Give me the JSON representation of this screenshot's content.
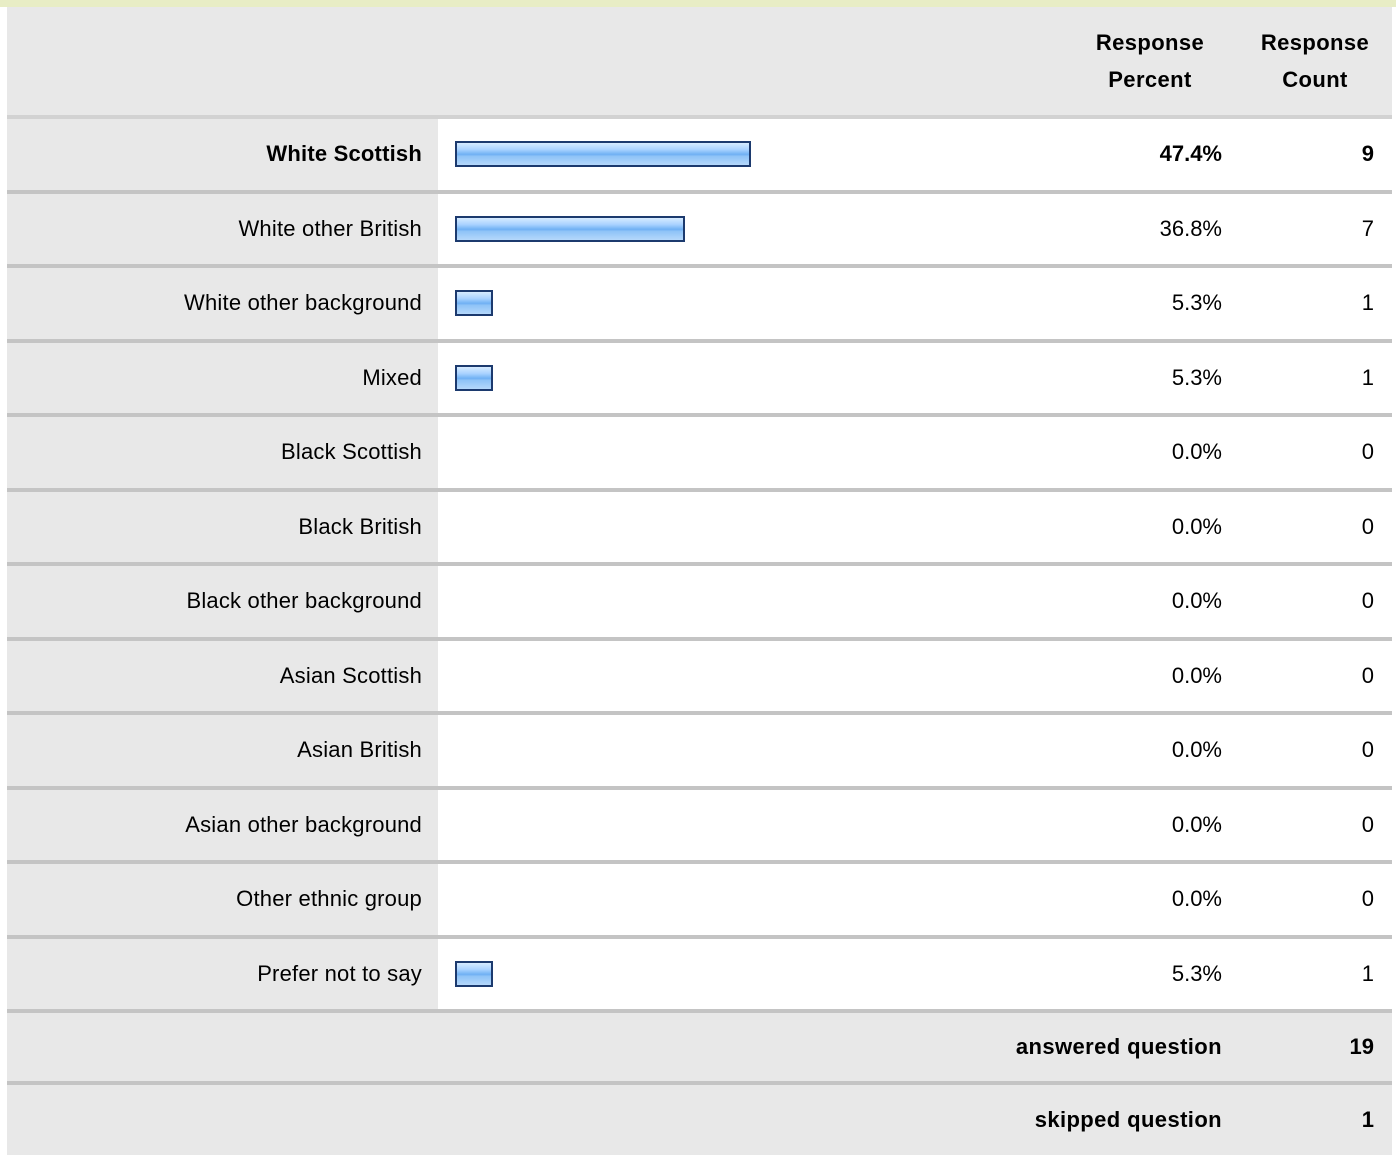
{
  "header": {
    "response_percent": "Response Percent",
    "response_count": "Response Count"
  },
  "accent": {
    "bar_fill": "#6fb0f3",
    "bar_border": "#1c3a6e",
    "label_bg": "#e8e8e8"
  },
  "rows": [
    {
      "label": "White Scottish",
      "percent": "47.4%",
      "count": "9",
      "bar_fraction": 0.474,
      "emphasis": true
    },
    {
      "label": "White other British",
      "percent": "36.8%",
      "count": "7",
      "bar_fraction": 0.368,
      "emphasis": false
    },
    {
      "label": "White other background",
      "percent": "5.3%",
      "count": "1",
      "bar_fraction": 0.053,
      "emphasis": false
    },
    {
      "label": "Mixed",
      "percent": "5.3%",
      "count": "1",
      "bar_fraction": 0.053,
      "emphasis": false
    },
    {
      "label": "Black Scottish",
      "percent": "0.0%",
      "count": "0",
      "bar_fraction": 0,
      "emphasis": false
    },
    {
      "label": "Black British",
      "percent": "0.0%",
      "count": "0",
      "bar_fraction": 0,
      "emphasis": false
    },
    {
      "label": "Black other background",
      "percent": "0.0%",
      "count": "0",
      "bar_fraction": 0,
      "emphasis": false
    },
    {
      "label": "Asian Scottish",
      "percent": "0.0%",
      "count": "0",
      "bar_fraction": 0,
      "emphasis": false
    },
    {
      "label": "Asian British",
      "percent": "0.0%",
      "count": "0",
      "bar_fraction": 0,
      "emphasis": false
    },
    {
      "label": "Asian other background",
      "percent": "0.0%",
      "count": "0",
      "bar_fraction": 0,
      "emphasis": false
    },
    {
      "label": "Other ethnic group",
      "percent": "0.0%",
      "count": "0",
      "bar_fraction": 0,
      "emphasis": false
    },
    {
      "label": "Prefer not to say",
      "percent": "5.3%",
      "count": "1",
      "bar_fraction": 0.053,
      "emphasis": false
    }
  ],
  "summary": {
    "answered_label": "answered question",
    "answered_value": "19",
    "skipped_label": "skipped question",
    "skipped_value": "1"
  }
}
